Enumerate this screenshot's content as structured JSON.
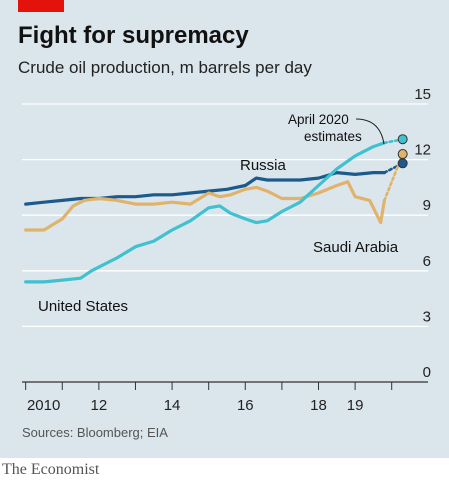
{
  "title": "Fight for supremacy",
  "subtitle": "Crude oil production, m barrels per day",
  "source": "Sources: Bloomberg; EIA",
  "publisher": "The Economist",
  "colors": {
    "background": "#dbe5ec",
    "accent": "#e3120b",
    "russia": "#1d5a8c",
    "saudi_arabia": "#e0b36b",
    "united_states": "#3fc1cf"
  },
  "chart_data": {
    "type": "line",
    "title": "Fight for supremacy",
    "subtitle": "Crude oil production, m barrels per day",
    "x_ticks": [
      "2010",
      "12",
      "14",
      "16",
      "18",
      "19"
    ],
    "x_tick_values": [
      2010,
      2012,
      2014,
      2016,
      2018,
      2019
    ],
    "xlim": [
      2009.9,
      2020.5
    ],
    "y_ticks": [
      "15",
      "12",
      "9",
      "6",
      "3",
      "0"
    ],
    "y_tick_values": [
      15,
      12,
      9,
      6,
      3,
      0
    ],
    "ylim": [
      0,
      15
    ],
    "grid": true,
    "annotations": [
      "April 2020 estimates"
    ],
    "series": [
      {
        "name": "Russia",
        "color": "#1d5a8c",
        "points": [
          [
            2010.0,
            9.6
          ],
          [
            2010.5,
            9.7
          ],
          [
            2011.0,
            9.8
          ],
          [
            2011.5,
            9.9
          ],
          [
            2012.0,
            9.9
          ],
          [
            2012.5,
            10.0
          ],
          [
            2013.0,
            10.0
          ],
          [
            2013.5,
            10.1
          ],
          [
            2014.0,
            10.1
          ],
          [
            2014.5,
            10.2
          ],
          [
            2015.0,
            10.3
          ],
          [
            2015.5,
            10.4
          ],
          [
            2016.0,
            10.6
          ],
          [
            2016.3,
            11.0
          ],
          [
            2016.6,
            10.9
          ],
          [
            2017.0,
            10.9
          ],
          [
            2017.5,
            10.9
          ],
          [
            2018.0,
            11.0
          ],
          [
            2018.5,
            11.3
          ],
          [
            2019.0,
            11.2
          ],
          [
            2019.5,
            11.3
          ],
          [
            2019.8,
            11.3
          ]
        ],
        "estimate_points": [
          [
            2019.8,
            11.3
          ],
          [
            2020.3,
            11.8
          ]
        ]
      },
      {
        "name": "Saudi Arabia",
        "color": "#e0b36b",
        "points": [
          [
            2010.0,
            8.2
          ],
          [
            2010.5,
            8.2
          ],
          [
            2011.0,
            8.8
          ],
          [
            2011.3,
            9.5
          ],
          [
            2011.6,
            9.8
          ],
          [
            2012.0,
            9.9
          ],
          [
            2012.5,
            9.8
          ],
          [
            2013.0,
            9.6
          ],
          [
            2013.5,
            9.6
          ],
          [
            2014.0,
            9.7
          ],
          [
            2014.5,
            9.6
          ],
          [
            2015.0,
            10.2
          ],
          [
            2015.3,
            10.0
          ],
          [
            2015.6,
            10.1
          ],
          [
            2016.0,
            10.4
          ],
          [
            2016.3,
            10.5
          ],
          [
            2016.6,
            10.3
          ],
          [
            2017.0,
            9.9
          ],
          [
            2017.5,
            9.9
          ],
          [
            2018.0,
            10.2
          ],
          [
            2018.5,
            10.6
          ],
          [
            2018.8,
            10.8
          ],
          [
            2019.0,
            10.0
          ],
          [
            2019.4,
            9.8
          ],
          [
            2019.7,
            8.6
          ],
          [
            2019.8,
            9.8
          ]
        ],
        "estimate_points": [
          [
            2019.8,
            9.8
          ],
          [
            2020.3,
            12.3
          ]
        ]
      },
      {
        "name": "United States",
        "color": "#3fc1cf",
        "points": [
          [
            2010.0,
            5.4
          ],
          [
            2010.5,
            5.4
          ],
          [
            2011.0,
            5.5
          ],
          [
            2011.5,
            5.6
          ],
          [
            2011.8,
            6.0
          ],
          [
            2012.0,
            6.2
          ],
          [
            2012.3,
            6.5
          ],
          [
            2012.5,
            6.7
          ],
          [
            2013.0,
            7.3
          ],
          [
            2013.5,
            7.6
          ],
          [
            2014.0,
            8.2
          ],
          [
            2014.5,
            8.7
          ],
          [
            2015.0,
            9.4
          ],
          [
            2015.3,
            9.5
          ],
          [
            2015.6,
            9.1
          ],
          [
            2016.0,
            8.8
          ],
          [
            2016.3,
            8.6
          ],
          [
            2016.6,
            8.7
          ],
          [
            2017.0,
            9.2
          ],
          [
            2017.5,
            9.7
          ],
          [
            2018.0,
            10.6
          ],
          [
            2018.5,
            11.5
          ],
          [
            2019.0,
            12.2
          ],
          [
            2019.5,
            12.7
          ],
          [
            2019.8,
            12.9
          ]
        ],
        "estimate_points": [
          [
            2019.8,
            12.9
          ],
          [
            2020.3,
            13.1
          ]
        ]
      }
    ],
    "labels": {
      "russia": "Russia",
      "saudi_arabia": "Saudi Arabia",
      "united_states": "United States",
      "estimates_line1": "April 2020",
      "estimates_line2": "estimates"
    }
  }
}
